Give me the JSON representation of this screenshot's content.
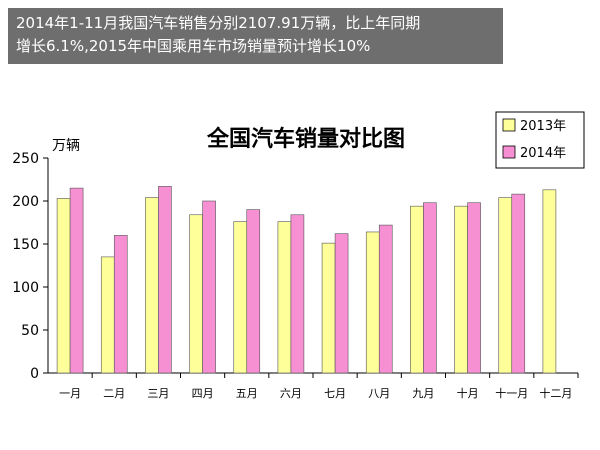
{
  "caption": {
    "line1": "2014年1-11月我国汽车销售分别2107.91万辆，比上年同期",
    "line2": "增长6.1%,2015年中国乘用车市场销量预计增长10%"
  },
  "chart_data": {
    "type": "bar",
    "title": "全国汽车销量对比图",
    "xlabel": "",
    "ylabel": "万辆",
    "ylim": [
      0,
      250
    ],
    "yticks": [
      0,
      50,
      100,
      150,
      200,
      250
    ],
    "grid": false,
    "legend_position": "top-right",
    "categories": [
      "一月",
      "二月",
      "三月",
      "四月",
      "五月",
      "六月",
      "七月",
      "八月",
      "九月",
      "十月",
      "十一月",
      "十二月"
    ],
    "series": [
      {
        "name": "2013年",
        "color": "#ffff99",
        "values": [
          203,
          135,
          204,
          184,
          176,
          176,
          151,
          164,
          194,
          194,
          204,
          213
        ]
      },
      {
        "name": "2014年",
        "color": "#f78fd3",
        "values": [
          215,
          160,
          217,
          200,
          190,
          184,
          162,
          172,
          198,
          198,
          208,
          null
        ]
      }
    ]
  }
}
